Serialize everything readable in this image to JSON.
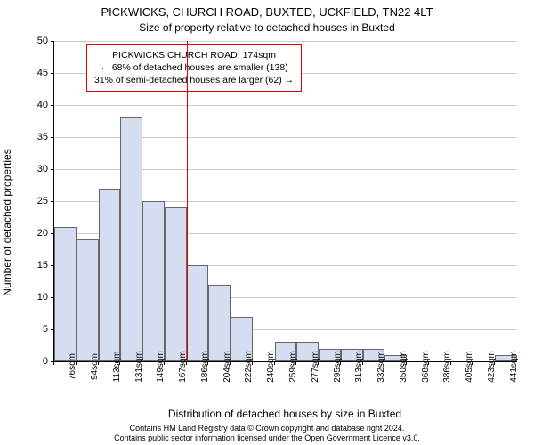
{
  "chart": {
    "type": "histogram",
    "title_main": "PICKWICKS, CHURCH ROAD, BUXTED, UCKFIELD, TN22 4LT",
    "title_sub": "Size of property relative to detached houses in Buxted",
    "ylabel": "Number of detached properties",
    "xlabel": "Distribution of detached houses by size in Buxted",
    "ylim": [
      0,
      50
    ],
    "ytick_step": 5,
    "bar_color": "#d5def0",
    "bar_border_color": "#666666",
    "grid_color": "#cccccc",
    "background_color": "#ffffff",
    "marker_line_color": "#e00000",
    "marker_bin_index": 5,
    "categories": [
      "76sqm",
      "94sqm",
      "113sqm",
      "131sqm",
      "149sqm",
      "167sqm",
      "186sqm",
      "204sqm",
      "222sqm",
      "240sqm",
      "259sqm",
      "277sqm",
      "295sqm",
      "313sqm",
      "332sqm",
      "350sqm",
      "368sqm",
      "386sqm",
      "405sqm",
      "423sqm",
      "441sqm"
    ],
    "values": [
      21,
      19,
      27,
      38,
      25,
      24,
      15,
      12,
      7,
      0,
      3,
      3,
      2,
      2,
      2,
      1,
      0,
      0,
      0,
      0,
      1
    ],
    "annotation": {
      "line1": "PICKWICKS CHURCH ROAD: 174sqm",
      "line2": "← 68% of detached houses are smaller (138)",
      "line3": "31% of semi-detached houses are larger (62) →"
    },
    "title_fontsize": 13,
    "subtitle_fontsize": 12,
    "label_fontsize": 12,
    "tick_fontsize": 11,
    "footer_line1": "Contains HM Land Registry data © Crown copyright and database right 2024.",
    "footer_line2": "Contains public sector information licensed under the Open Government Licence v3.0."
  }
}
